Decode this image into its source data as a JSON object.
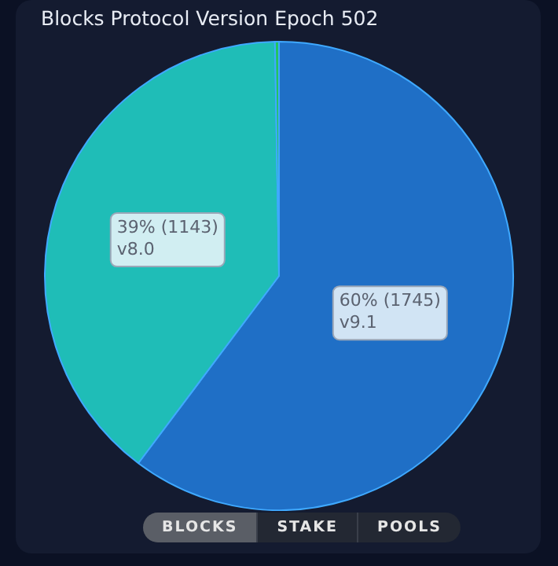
{
  "chart_data": {
    "type": "pie",
    "title": "Blocks Protocol Version Epoch 502",
    "categories": [
      "v9.1",
      "v8.0",
      null
    ],
    "values": [
      1745,
      1143,
      8
    ],
    "colors": [
      "#1f6fc6",
      "#1fbdb7",
      "#22c55e"
    ],
    "value_labels": [
      "60% (1745)",
      "39% (1143)",
      null
    ],
    "legend": false,
    "annotations": [
      "BLOCKS",
      "STAKE",
      "POOLS"
    ]
  }
}
